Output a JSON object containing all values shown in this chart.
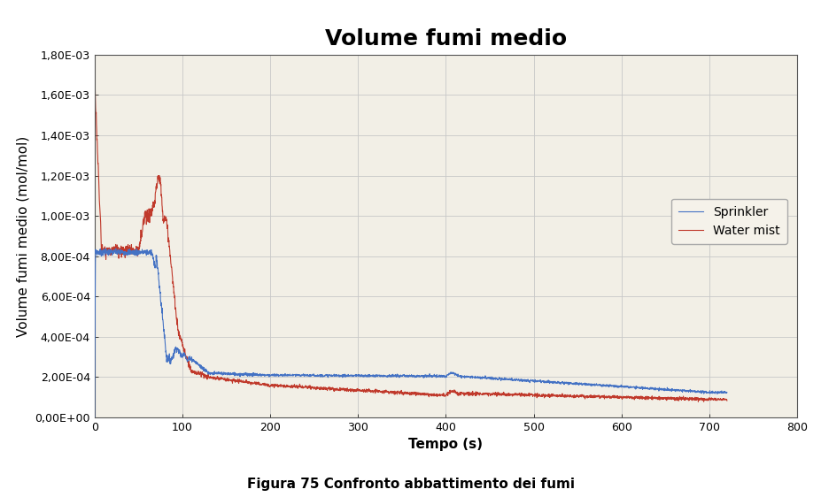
{
  "title": "Volume fumi medio",
  "xlabel": "Tempo (s)",
  "ylabel": "Volume fumi medio (mol/mol)",
  "caption": "Figura 75 Confronto abbattimento dei fumi",
  "xlim": [
    0,
    800
  ],
  "ylim": [
    0,
    0.0018
  ],
  "yticks": [
    0.0,
    0.0002,
    0.0004,
    0.0006,
    0.0008,
    0.001,
    0.0012,
    0.0014,
    0.0016,
    0.0018
  ],
  "ytick_labels": [
    "0,00E+00",
    "2,00E-04",
    "4,00E-04",
    "6,00E-04",
    "8,00E-04",
    "1,00E-03",
    "1,20E-03",
    "1,40E-03",
    "1,60E-03",
    "1,80E-03"
  ],
  "xticks": [
    0,
    100,
    200,
    300,
    400,
    500,
    600,
    700,
    800
  ],
  "legend_entries": [
    "Sprinkler",
    "Water mist"
  ],
  "sprinkler_color": "#4472C4",
  "water_mist_color": "#C0392B",
  "fig_bg_color": "#FFFFFF",
  "plot_bg_color": "#F2EFE6",
  "grid_color": "#C8C8C8",
  "title_fontsize": 18,
  "label_fontsize": 11,
  "tick_fontsize": 9,
  "legend_fontsize": 10
}
